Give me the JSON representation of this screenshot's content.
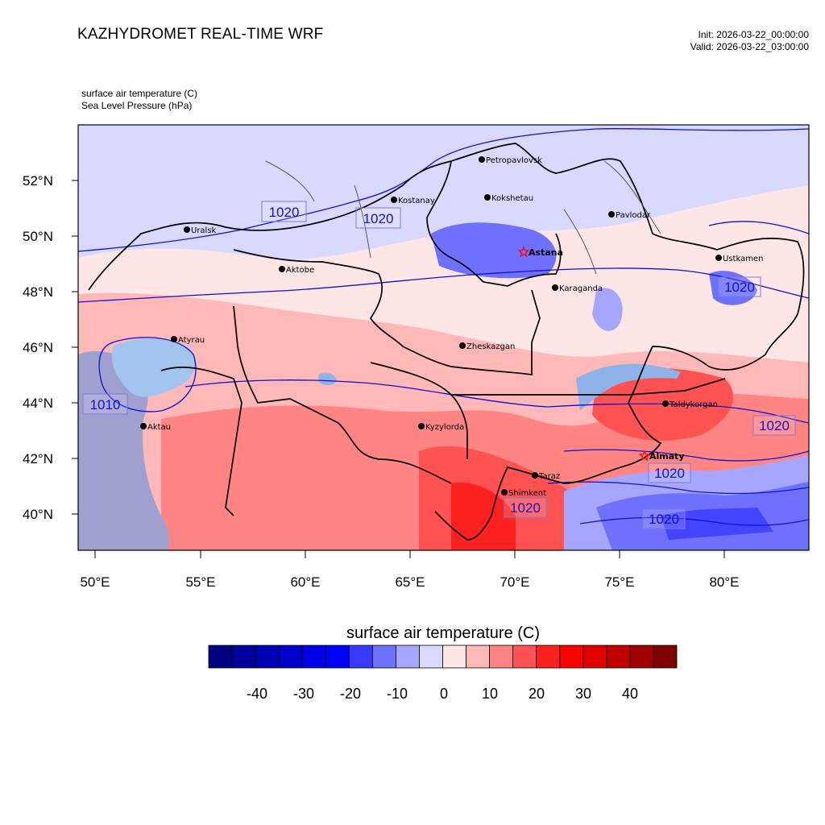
{
  "header": {
    "title": "KAZHYDROMET REAL-TIME WRF",
    "init": "Init: 2026-03-22_00:00:00",
    "valid": "Valid: 2026-03-22_03:00:00",
    "field_label": "surface air temperature   (C)",
    "overlay_label": "Sea Level Pressure   (hPa)"
  },
  "map": {
    "lat_labels": [
      "52°N",
      "50°N",
      "48°N",
      "46°N",
      "44°N",
      "42°N",
      "40°N"
    ],
    "lon_labels": [
      "50°E",
      "55°E",
      "60°E",
      "65°E",
      "70°E",
      "75°E",
      "80°E"
    ],
    "cities": [
      {
        "name": "Petropavlovsk"
      },
      {
        "name": "Kostanay"
      },
      {
        "name": "Kokshetau"
      },
      {
        "name": "Pavlodar"
      },
      {
        "name": "Uralsk"
      },
      {
        "name": "Aktobe"
      },
      {
        "name": "Ustkamen"
      },
      {
        "name": "Karaganda"
      },
      {
        "name": "Atyrau"
      },
      {
        "name": "Zheskazgan"
      },
      {
        "name": "Taldykorgan"
      },
      {
        "name": "Aktau"
      },
      {
        "name": "Kyzylorda"
      },
      {
        "name": "Taraz"
      },
      {
        "name": "Shimkent"
      }
    ],
    "capitals": [
      {
        "name": "Astana"
      },
      {
        "name": "Almaty"
      }
    ],
    "isobar_labels": [
      "1020",
      "1020",
      "1020",
      "1010",
      "1020",
      "1020",
      "1020",
      "1020"
    ],
    "colors": {
      "border": "#000000",
      "isobar": "#1010d0",
      "capital_marker": "#ff0000"
    }
  },
  "colorbar": {
    "title": "surface air temperature  (C)",
    "colors": [
      "#000080",
      "#00009a",
      "#0000b3",
      "#0000cc",
      "#0000e6",
      "#0000ff",
      "#3a3aff",
      "#7070ff",
      "#a6a6ff",
      "#d9d9ff",
      "#ffe6e6",
      "#ffb8b8",
      "#ff8585",
      "#ff5252",
      "#ff2020",
      "#ff0000",
      "#e00000",
      "#c00000",
      "#a00000",
      "#800000"
    ],
    "labels": [
      "-40",
      "-30",
      "-20",
      "-10",
      "0",
      "10",
      "20",
      "30",
      "40"
    ]
  }
}
